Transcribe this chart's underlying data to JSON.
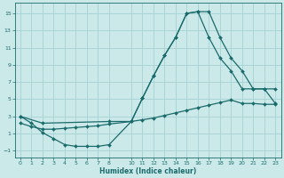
{
  "xlabel": "Humidex (Indice chaleur)",
  "background_color": "#cce9ea",
  "grid_color": "#aad4d6",
  "line_color": "#1a6b6b",
  "xlim": [
    -0.5,
    23.5
  ],
  "ylim": [
    -1.8,
    16.2
  ],
  "xticks": [
    0,
    1,
    2,
    3,
    4,
    5,
    6,
    7,
    8,
    10,
    11,
    12,
    13,
    14,
    15,
    16,
    17,
    18,
    19,
    20,
    21,
    22,
    23
  ],
  "yticks": [
    -1,
    1,
    3,
    5,
    7,
    9,
    11,
    13,
    15
  ],
  "curve1_x": [
    0,
    1,
    2,
    3,
    4,
    5,
    6,
    7,
    8,
    10,
    11,
    12,
    13,
    14,
    15,
    16,
    17,
    18,
    19,
    20,
    21,
    22,
    23
  ],
  "curve1_y": [
    3.0,
    2.2,
    1.1,
    0.4,
    -0.3,
    -0.5,
    -0.5,
    -0.5,
    -0.3,
    2.4,
    5.1,
    7.7,
    10.1,
    12.2,
    15.0,
    15.2,
    15.2,
    12.2,
    9.8,
    8.3,
    6.2,
    6.2,
    4.5
  ],
  "curve2_x": [
    0,
    2,
    8,
    10,
    11,
    12,
    13,
    14,
    15,
    16,
    17,
    18,
    19,
    20,
    21,
    22,
    23
  ],
  "curve2_y": [
    3.0,
    2.2,
    2.4,
    2.4,
    5.1,
    7.7,
    10.1,
    12.2,
    15.0,
    15.2,
    12.2,
    9.8,
    8.3,
    6.2,
    6.2,
    6.2,
    6.2
  ],
  "curve3_x": [
    0,
    1,
    2,
    3,
    4,
    5,
    6,
    7,
    8,
    10,
    11,
    12,
    13,
    14,
    15,
    16,
    17,
    18,
    19,
    20,
    21,
    22,
    23
  ],
  "curve3_y": [
    2.2,
    1.8,
    1.5,
    1.5,
    1.6,
    1.7,
    1.8,
    1.9,
    2.1,
    2.4,
    2.6,
    2.8,
    3.1,
    3.4,
    3.7,
    4.0,
    4.3,
    4.6,
    4.9,
    4.5,
    4.5,
    4.4,
    4.4
  ]
}
